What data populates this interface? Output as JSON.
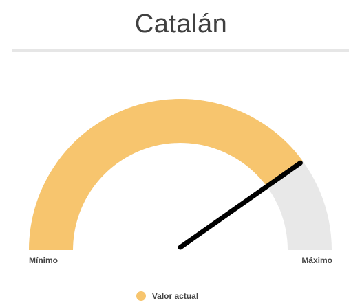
{
  "chart_data": {
    "type": "gauge",
    "title": "Catalán",
    "min_label": "Mínimo",
    "max_label": "Máximo",
    "range": [
      0,
      1
    ],
    "value": 0.8,
    "legend": [
      {
        "name": "Valor actual",
        "color": "#f7c56e"
      }
    ],
    "colors": {
      "fill": "#f7c56e",
      "track": "#e8e8e8",
      "needle": "#000000"
    }
  }
}
